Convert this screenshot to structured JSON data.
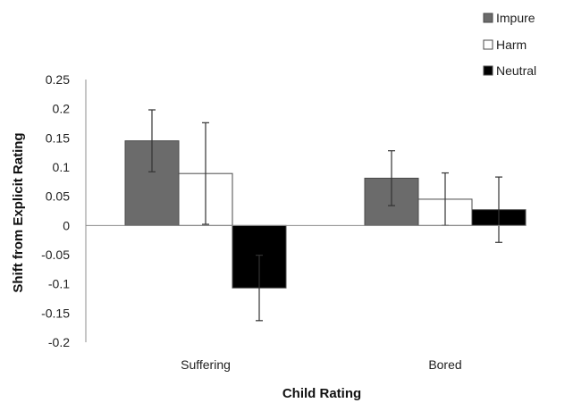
{
  "chart_data": {
    "type": "bar",
    "title": "",
    "xlabel": "Child Rating",
    "ylabel": "Shift from Explicit Rating",
    "categories": [
      "Suffering",
      "Bored"
    ],
    "ylim": [
      -0.2,
      0.25
    ],
    "yticks": [
      0.25,
      0.2,
      0.15,
      0.1,
      0.05,
      0,
      -0.05,
      -0.1,
      -0.15,
      -0.2
    ],
    "ytick_labels": [
      "0.25",
      "0.2",
      "0.15",
      "0.1",
      "0.05",
      "0",
      "-0.05",
      "-0.1",
      "-0.15",
      "-0.2"
    ],
    "grid": false,
    "legend_position": "top-right",
    "series": [
      {
        "name": "Impure",
        "color": "#6b6b6b",
        "values": [
          0.145,
          0.081
        ],
        "error": [
          0.053,
          0.047
        ]
      },
      {
        "name": "Harm",
        "color": "#ffffff",
        "values": [
          0.089,
          0.045
        ],
        "error": [
          0.087,
          0.045
        ]
      },
      {
        "name": "Neutral",
        "color": "#000000",
        "values": [
          -0.107,
          0.027
        ],
        "error": [
          0.056,
          0.056
        ]
      }
    ]
  }
}
